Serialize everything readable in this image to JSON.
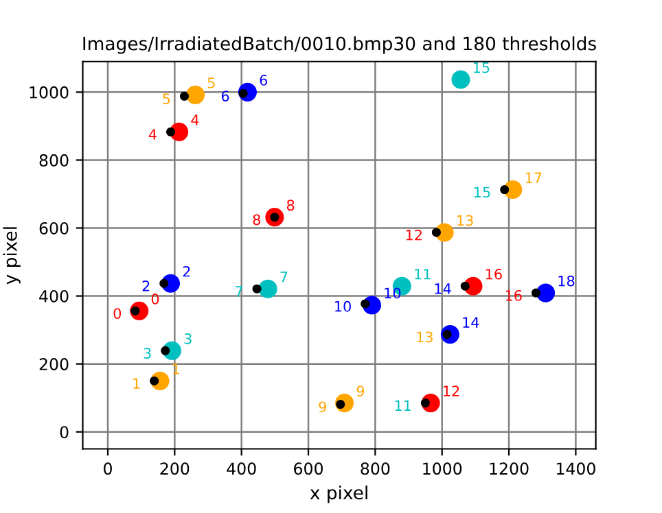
{
  "chart_data": {
    "type": "scatter",
    "title": "Images/IrradiatedBatch/0010.bmp30 and 180 thresholds",
    "xlabel": "x pixel",
    "ylabel": "y pixel",
    "xlim": [
      -75,
      1460
    ],
    "ylim": [
      -50,
      1090
    ],
    "xticks": [
      0,
      200,
      400,
      600,
      800,
      1000,
      1200,
      1400
    ],
    "yticks": [
      0,
      200,
      400,
      600,
      800,
      1000
    ],
    "grid": true,
    "marker": "circle",
    "series": [
      {
        "name": "0",
        "color": "#ff0000",
        "x": [
          94
        ],
        "values": [
          356
        ]
      },
      {
        "name": "1",
        "color": "#ffa500",
        "x": [
          156
        ],
        "values": [
          150
        ]
      },
      {
        "name": "2",
        "color": "#0000ff",
        "x": [
          188
        ],
        "values": [
          437
        ]
      },
      {
        "name": "3",
        "color": "#00bfbf",
        "x": [
          192
        ],
        "values": [
          239
        ]
      },
      {
        "name": "4",
        "color": "#ff0000",
        "x": [
          213
        ],
        "values": [
          883
        ]
      },
      {
        "name": "5",
        "color": "#ffa500",
        "x": [
          262
        ],
        "values": [
          992
        ]
      },
      {
        "name": "6",
        "color": "#0000ff",
        "x": [
          418
        ],
        "values": [
          1000
        ]
      },
      {
        "name": "7",
        "color": "#00bfbf",
        "x": [
          479
        ],
        "values": [
          421
        ]
      },
      {
        "name": "8",
        "color": "#ff0000",
        "x": [
          499
        ],
        "values": [
          632
        ]
      },
      {
        "name": "9",
        "color": "#ffa500",
        "x": [
          708
        ],
        "values": [
          85
        ]
      },
      {
        "name": "10",
        "color": "#0000ff",
        "x": [
          790
        ],
        "values": [
          373
        ]
      },
      {
        "name": "11",
        "color": "#00bfbf",
        "x": [
          880
        ],
        "values": [
          429
        ]
      },
      {
        "name": "12",
        "color": "#ff0000",
        "x": [
          966
        ],
        "values": [
          85
        ]
      },
      {
        "name": "13",
        "color": "#ffa500",
        "x": [
          1007
        ],
        "values": [
          587
        ]
      },
      {
        "name": "14",
        "color": "#0000ff",
        "x": [
          1024
        ],
        "values": [
          287
        ]
      },
      {
        "name": "15",
        "color": "#00bfbf",
        "x": [
          1056
        ],
        "values": [
          1037
        ]
      },
      {
        "name": "16",
        "color": "#ff0000",
        "x": [
          1093
        ],
        "values": [
          429
        ]
      },
      {
        "name": "17",
        "color": "#ffa500",
        "x": [
          1212
        ],
        "values": [
          713
        ]
      },
      {
        "name": "18",
        "color": "#0000ff",
        "x": [
          1310
        ],
        "values": [
          409
        ]
      },
      {
        "color": "#000000",
        "x": [
          82,
          139,
          168,
          172,
          188,
          229,
          405,
          446,
          499,
          696,
          770,
          950,
          983,
          1015,
          1069,
          1187,
          1281
        ],
        "values": [
          356,
          150,
          437,
          239,
          883,
          988,
          996,
          421,
          632,
          81,
          377,
          85,
          587,
          287,
          429,
          713,
          409
        ]
      }
    ],
    "annotations": [
      {
        "text": "0",
        "x": 82,
        "y": 356
      },
      {
        "text": "1",
        "x": 139,
        "y": 150
      },
      {
        "text": "2",
        "x": 168,
        "y": 437
      },
      {
        "text": "3",
        "x": 172,
        "y": 239
      },
      {
        "text": "4",
        "x": 188,
        "y": 883
      },
      {
        "text": "5",
        "x": 229,
        "y": 988
      },
      {
        "text": "6",
        "x": 405,
        "y": 996
      },
      {
        "text": "7",
        "x": 446,
        "y": 421
      },
      {
        "text": "8",
        "x": 499,
        "y": 632
      },
      {
        "text": "9",
        "x": 696,
        "y": 81
      },
      {
        "text": "10",
        "x": 770,
        "y": 377
      },
      {
        "text": "11",
        "x": 950,
        "y": 85
      },
      {
        "text": "12",
        "x": 983,
        "y": 587
      },
      {
        "text": "13",
        "x": 1015,
        "y": 287
      },
      {
        "text": "14",
        "x": 1069,
        "y": 429
      },
      {
        "text": "15",
        "x": 1187,
        "y": 713
      },
      {
        "text": "16",
        "x": 1281,
        "y": 409
      }
    ]
  }
}
